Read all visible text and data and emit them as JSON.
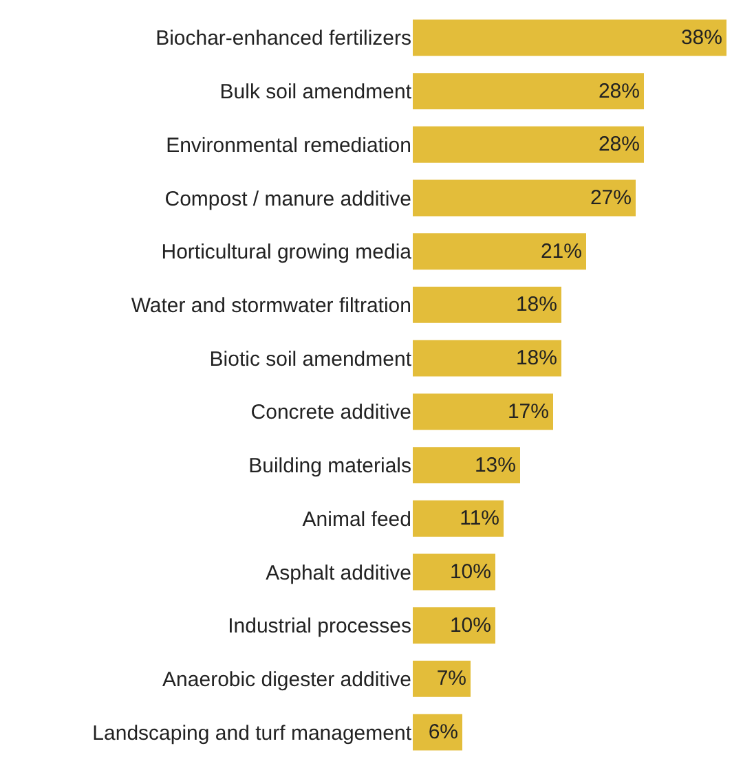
{
  "chart_data": {
    "type": "bar",
    "orientation": "horizontal",
    "categories": [
      "Biochar-enhanced fertilizers",
      "Bulk soil amendment",
      "Environmental remediation",
      "Compost / manure additive",
      "Horticultural growing media",
      "Water and stormwater filtration",
      "Biotic soil amendment",
      "Concrete additive",
      "Building materials",
      "Animal feed",
      "Asphalt additive",
      "Industrial processes",
      "Anaerobic digester additive",
      "Landscaping and turf management"
    ],
    "values": [
      38,
      28,
      28,
      27,
      21,
      18,
      18,
      17,
      13,
      11,
      10,
      10,
      7,
      6
    ],
    "value_labels": [
      "38%",
      "28%",
      "28%",
      "27%",
      "21%",
      "18%",
      "18%",
      "17%",
      "13%",
      "11%",
      "10%",
      "10%",
      "7%",
      "6%"
    ],
    "color": "#e3bd3a"
  }
}
